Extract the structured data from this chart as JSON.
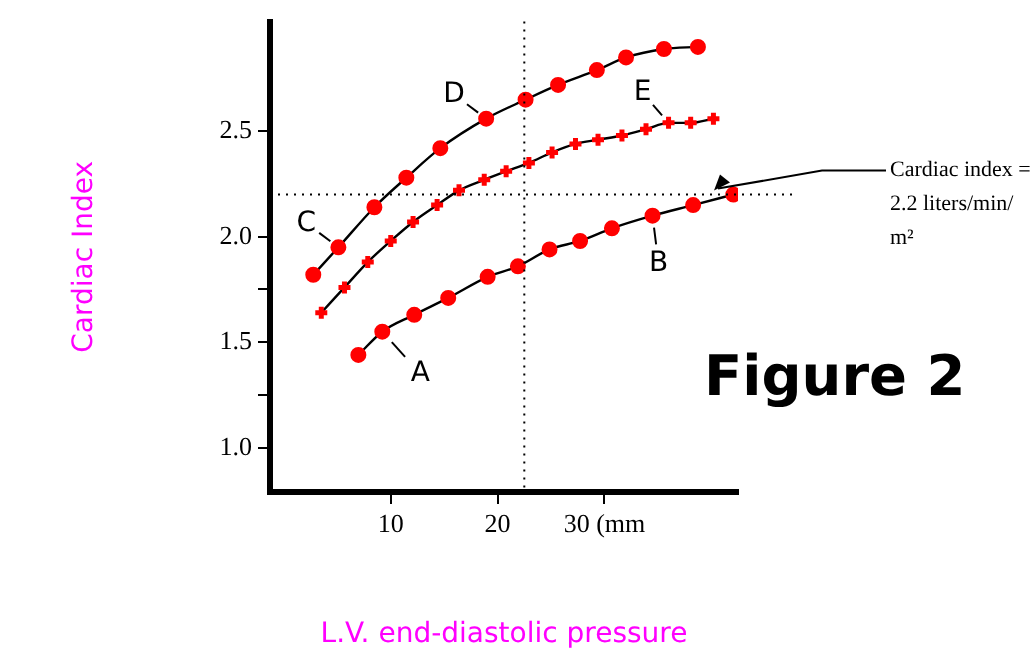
{
  "chart_data": {
    "type": "line",
    "xlabel": "L.V. end-diastolic pressure",
    "ylabel": "Cardiac Index",
    "xlim": [
      -1.3,
      42.5
    ],
    "xticks": [
      10,
      20,
      {
        "value": 30,
        "label": "30 (mm"
      }
    ],
    "ylim": [
      0.79,
      3.02
    ],
    "yticks": [
      {
        "value": 1.0,
        "label": "1.0"
      },
      {
        "value": 1.25,
        "label": null
      },
      {
        "value": 1.5,
        "label": "1.5"
      },
      {
        "value": 1.75,
        "label": null
      },
      {
        "value": 2.0,
        "label": "2.0"
      },
      {
        "value": 2.5,
        "label": "2.5"
      }
    ],
    "series": [
      {
        "color": "#ff0000",
        "marker": "circle",
        "x": [
          2.75,
          5.1,
          8.47,
          11.46,
          14.64,
          18.93,
          22.62,
          25.66,
          29.29,
          32.02,
          35.57,
          38.75
        ],
        "values": [
          1.82,
          1.95,
          2.14,
          2.28,
          2.42,
          2.56,
          2.65,
          2.72,
          2.79,
          2.85,
          2.89,
          2.9
        ]
      },
      {
        "color": "#ff0000",
        "marker": "cross",
        "x": [
          3.5,
          5.67,
          7.85,
          10.0,
          12.09,
          14.34,
          16.39,
          18.75,
          20.8,
          22.93,
          25.1,
          27.29,
          29.4,
          31.64,
          33.89,
          36.0,
          38.07,
          40.2
        ],
        "values": [
          1.64,
          1.76,
          1.88,
          1.98,
          2.07,
          2.15,
          2.22,
          2.27,
          2.31,
          2.35,
          2.4,
          2.44,
          2.46,
          2.48,
          2.51,
          2.54,
          2.54,
          2.56
        ]
      },
      {
        "color": "#ff0000",
        "marker": "circle",
        "x": [
          6.97,
          9.21,
          12.2,
          15.38,
          19.07,
          21.9,
          24.86,
          27.72,
          30.7,
          34.5,
          38.3,
          42.06
        ],
        "values": [
          1.44,
          1.55,
          1.63,
          1.71,
          1.81,
          1.86,
          1.94,
          1.98,
          2.04,
          2.1,
          2.15,
          2.2
        ]
      }
    ],
    "ref_lines": [
      {
        "axis": "x",
        "value": 22.5,
        "line_style": "dotted"
      },
      {
        "axis": "y",
        "value": 2.2,
        "line_style": "dotted",
        "label": "Cardiac index = 2.2 liters/min/m²"
      }
    ],
    "annotations": [
      {
        "text": "A",
        "x": 9.21,
        "y": 1.55
      },
      {
        "text": "B",
        "x": 34.5,
        "y": 2.1
      },
      {
        "text": "C",
        "x": 5.1,
        "y": 1.95
      },
      {
        "text": "D",
        "x": 18.93,
        "y": 2.56
      },
      {
        "text": "E",
        "x": 36.0,
        "y": 2.54
      },
      "Figure 2"
    ]
  }
}
